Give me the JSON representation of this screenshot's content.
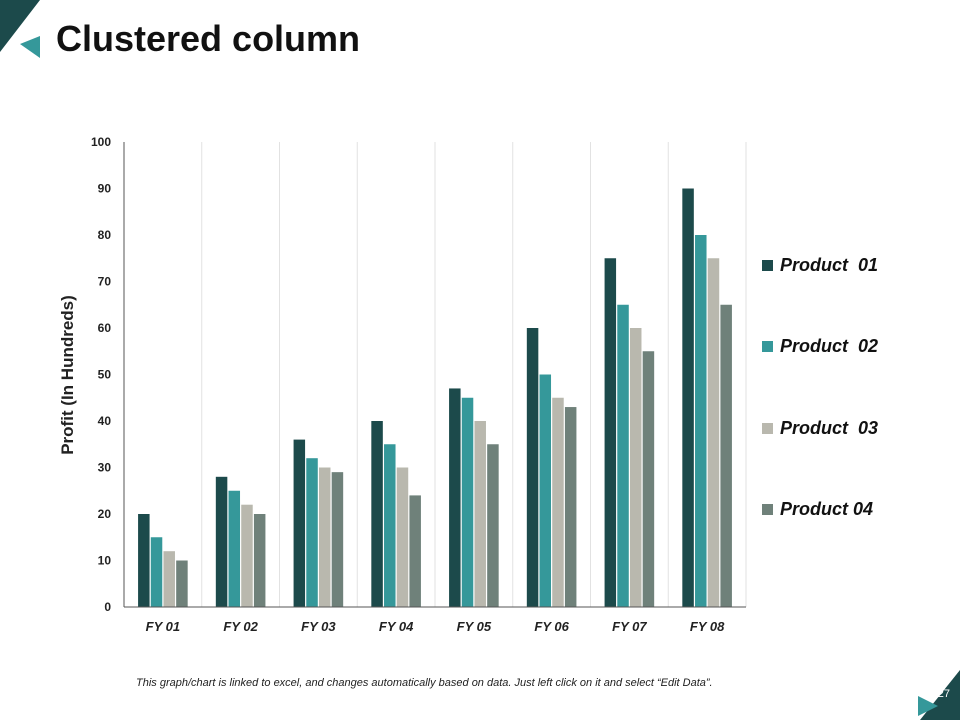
{
  "slide": {
    "title": "Clustered column",
    "footnote": "This graph/chart is linked to excel, and changes automatically  based on data.  Just left click on it and select “Edit Data”.",
    "page_number": "27"
  },
  "colors": {
    "product_01": "#1c4a4b",
    "product_02": "#35989a",
    "product_03": "#b9b8ae",
    "product_04": "#6f817a",
    "accent_dark": "#1c4a4b",
    "accent_teal": "#35989a",
    "axis": "#555555",
    "gridline": "#e2e2e2"
  },
  "chart_data": {
    "type": "bar",
    "title": "",
    "xlabel": "",
    "ylabel": "Profit (In Hundreds)",
    "ylim": [
      0,
      100
    ],
    "yticks": [
      0,
      10,
      20,
      30,
      40,
      50,
      60,
      70,
      80,
      90,
      100
    ],
    "vertical_gridlines": true,
    "legend_position": "right",
    "categories": [
      "FY 01",
      "FY 02",
      "FY 03",
      "FY 04",
      "FY 05",
      "FY 06",
      "FY 07",
      "FY 08"
    ],
    "series": [
      {
        "name": "Product  01",
        "color_key": "product_01",
        "values": [
          20,
          28,
          36,
          40,
          47,
          60,
          75,
          90
        ]
      },
      {
        "name": "Product  02",
        "color_key": "product_02",
        "values": [
          15,
          25,
          32,
          35,
          45,
          50,
          65,
          80
        ]
      },
      {
        "name": "Product  03",
        "color_key": "product_03",
        "values": [
          12,
          22,
          30,
          30,
          40,
          45,
          60,
          75
        ]
      },
      {
        "name": "Product 04",
        "color_key": "product_04",
        "values": [
          10,
          20,
          29,
          24,
          35,
          43,
          55,
          65
        ]
      }
    ]
  }
}
